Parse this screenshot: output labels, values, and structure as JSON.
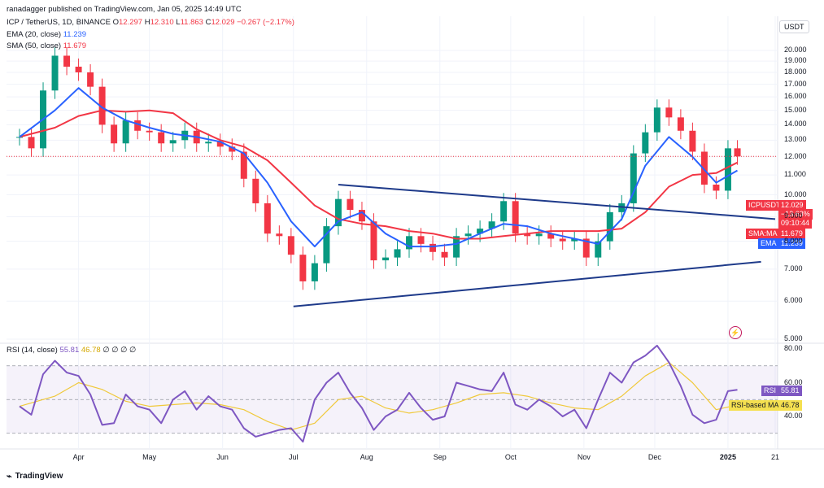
{
  "header": {
    "published": "ranadagger published on TradingView.com, Jan 05, 2025 14:49 UTC",
    "symbol": "ICP / TetherUS, 1D, BINANCE",
    "ohlc": {
      "o_label": "O",
      "o": "12.297",
      "h_label": "H",
      "h": "12.310",
      "l_label": "L",
      "l": "11.863",
      "c_label": "C",
      "c": "12.029",
      "change": "−0.267 (−2.17%)"
    },
    "ema_legend": {
      "label": "EMA (20, close)",
      "value": "11.239"
    },
    "sma_legend": {
      "label": "SMA (50, close)",
      "value": "11.679"
    },
    "rsi_legend": {
      "label": "RSI (14, close)",
      "value": "55.81",
      "ma_value": "46.78",
      "extra": "∅ ∅ ∅ ∅"
    }
  },
  "currency": "USDT",
  "price_badges": {
    "symbol": "ICPUSDT",
    "price": "12.029",
    "pct": "−13.63%",
    "countdown": "09:10:44",
    "sma_tag": "SMA:MA",
    "sma_value": "11.679",
    "ema_tag": "EMA",
    "ema_value": "11.239"
  },
  "rsi_badges": {
    "rsi_tag": "RSI",
    "rsi_value": "55.81",
    "ma_tag": "RSI-based MA",
    "ma_value": "46.78"
  },
  "colors": {
    "up": "#089981",
    "down": "#f23645",
    "ema": "#2962ff",
    "sma": "#f23645",
    "rsi": "#7e57c2",
    "rsi_ma": "#f0c93a",
    "trendline": "#1e3a8a"
  },
  "tradingview_logo": "TradingView",
  "chart_data": [
    {
      "type": "candlestick",
      "title": "ICP / TetherUS, 1D, BINANCE",
      "y_scale": "log",
      "y_ticks": [
        5.0,
        6.0,
        7.0,
        8.0,
        9.0,
        10.0,
        11.0,
        12.0,
        13.0,
        14.0,
        15.0,
        16.0,
        17.0,
        18.0,
        19.0,
        20.0
      ],
      "y_tick_labels": [
        "5.000",
        "6.000",
        "7.000",
        "8.000",
        "9.000",
        "10.000",
        "11.000",
        "12.000",
        "13.000",
        "14.000",
        "15.000",
        "16.000",
        "17.000",
        "18.000",
        "19.000",
        "20.000"
      ],
      "x_tick_labels": [
        "Apr",
        "May",
        "Jun",
        "Jul",
        "Aug",
        "Sep",
        "Oct",
        "Nov",
        "Dec",
        "2025",
        "21"
      ],
      "x_tick_dates": [
        "2024-04-01",
        "2024-05-01",
        "2024-06-01",
        "2024-07-01",
        "2024-08-01",
        "2024-09-01",
        "2024-10-01",
        "2024-11-01",
        "2024-12-01",
        "2025-01-01",
        "2025-01-21"
      ],
      "close_series": {
        "dates": [
          "2024-03-07",
          "2024-03-12",
          "2024-03-17",
          "2024-03-22",
          "2024-03-27",
          "2024-04-01",
          "2024-04-06",
          "2024-04-11",
          "2024-04-16",
          "2024-04-21",
          "2024-04-26",
          "2024-05-01",
          "2024-05-06",
          "2024-05-11",
          "2024-05-16",
          "2024-05-21",
          "2024-05-26",
          "2024-05-31",
          "2024-06-05",
          "2024-06-10",
          "2024-06-15",
          "2024-06-20",
          "2024-06-25",
          "2024-06-30",
          "2024-07-05",
          "2024-07-10",
          "2024-07-15",
          "2024-07-20",
          "2024-07-25",
          "2024-07-30",
          "2024-08-04",
          "2024-08-09",
          "2024-08-14",
          "2024-08-19",
          "2024-08-24",
          "2024-08-29",
          "2024-09-03",
          "2024-09-08",
          "2024-09-13",
          "2024-09-18",
          "2024-09-23",
          "2024-09-28",
          "2024-10-03",
          "2024-10-08",
          "2024-10-13",
          "2024-10-18",
          "2024-10-23",
          "2024-10-28",
          "2024-11-02",
          "2024-11-07",
          "2024-11-12",
          "2024-11-17",
          "2024-11-22",
          "2024-11-27",
          "2024-12-02",
          "2024-12-07",
          "2024-12-12",
          "2024-12-17",
          "2024-12-22",
          "2024-12-27",
          "2025-01-01",
          "2025-01-05"
        ],
        "close": [
          13.2,
          12.5,
          16.5,
          19.5,
          18.5,
          18.0,
          16.8,
          14.0,
          12.8,
          14.3,
          13.6,
          13.5,
          12.8,
          13.0,
          13.6,
          12.8,
          12.9,
          12.6,
          12.3,
          10.8,
          9.6,
          8.3,
          8.2,
          7.5,
          6.6,
          7.2,
          8.6,
          9.8,
          9.3,
          8.8,
          7.3,
          7.4,
          7.7,
          8.2,
          7.9,
          7.6,
          7.4,
          8.2,
          8.3,
          8.5,
          8.8,
          9.7,
          8.3,
          8.2,
          8.3,
          8.1,
          8.0,
          8.1,
          7.4,
          8.0,
          9.2,
          9.6,
          12.2,
          13.5,
          15.2,
          14.5,
          13.6,
          12.3,
          10.5,
          10.2,
          12.5,
          12.029
        ]
      },
      "ema20": {
        "dates": [
          "2024-03-07",
          "2024-03-22",
          "2024-04-01",
          "2024-04-11",
          "2024-04-21",
          "2024-05-01",
          "2024-05-11",
          "2024-05-21",
          "2024-05-31",
          "2024-06-10",
          "2024-06-20",
          "2024-06-30",
          "2024-07-10",
          "2024-07-20",
          "2024-07-30",
          "2024-08-09",
          "2024-08-19",
          "2024-08-29",
          "2024-09-08",
          "2024-09-18",
          "2024-09-28",
          "2024-10-08",
          "2024-10-18",
          "2024-10-28",
          "2024-11-07",
          "2024-11-17",
          "2024-11-27",
          "2024-12-07",
          "2024-12-17",
          "2024-12-27",
          "2025-01-05"
        ],
        "values": [
          13.2,
          15.0,
          16.7,
          15.2,
          14.3,
          13.8,
          13.4,
          13.2,
          12.9,
          12.2,
          10.6,
          8.8,
          7.8,
          8.8,
          9.2,
          8.3,
          7.8,
          7.8,
          7.9,
          8.3,
          8.7,
          8.6,
          8.3,
          8.1,
          7.9,
          8.9,
          11.5,
          13.2,
          12.0,
          10.6,
          11.239
        ]
      },
      "sma50": {
        "dates": [
          "2024-03-07",
          "2024-03-22",
          "2024-04-01",
          "2024-04-11",
          "2024-04-21",
          "2024-05-01",
          "2024-05-11",
          "2024-05-21",
          "2024-05-31",
          "2024-06-10",
          "2024-06-20",
          "2024-06-30",
          "2024-07-10",
          "2024-07-20",
          "2024-07-30",
          "2024-08-09",
          "2024-08-19",
          "2024-08-29",
          "2024-09-08",
          "2024-09-18",
          "2024-09-28",
          "2024-10-08",
          "2024-10-18",
          "2024-10-28",
          "2024-11-07",
          "2024-11-17",
          "2024-11-27",
          "2024-12-07",
          "2024-12-17",
          "2024-12-27",
          "2025-01-05"
        ],
        "values": [
          13.2,
          13.8,
          14.6,
          15.0,
          14.9,
          15.0,
          14.8,
          13.7,
          13.0,
          12.6,
          11.8,
          10.6,
          9.5,
          8.9,
          8.7,
          8.6,
          8.4,
          8.3,
          8.1,
          8.1,
          8.2,
          8.3,
          8.4,
          8.4,
          8.4,
          8.5,
          9.2,
          10.4,
          11.0,
          11.1,
          11.679
        ]
      },
      "trendlines": [
        {
          "name": "upper",
          "from": {
            "date": "2024-07-20",
            "value": 10.5
          },
          "to": {
            "date": "2025-01-21",
            "value": 8.9
          }
        },
        {
          "name": "lower",
          "from": {
            "date": "2024-07-01",
            "value": 5.85
          },
          "to": {
            "date": "2025-01-15",
            "value": 7.25
          }
        }
      ]
    },
    {
      "type": "line",
      "title": "RSI (14, close)",
      "y_ticks": [
        40,
        60,
        80
      ],
      "y_tick_labels": [
        "40.00",
        "60.00",
        "80.00"
      ],
      "band": [
        30,
        70
      ],
      "rsi": {
        "dates": [
          "2024-03-07",
          "2024-03-12",
          "2024-03-17",
          "2024-03-22",
          "2024-03-27",
          "2024-04-01",
          "2024-04-06",
          "2024-04-11",
          "2024-04-16",
          "2024-04-21",
          "2024-04-26",
          "2024-05-01",
          "2024-05-06",
          "2024-05-11",
          "2024-05-16",
          "2024-05-21",
          "2024-05-26",
          "2024-05-31",
          "2024-06-05",
          "2024-06-10",
          "2024-06-15",
          "2024-06-20",
          "2024-06-25",
          "2024-06-30",
          "2024-07-05",
          "2024-07-10",
          "2024-07-15",
          "2024-07-20",
          "2024-07-25",
          "2024-07-30",
          "2024-08-04",
          "2024-08-09",
          "2024-08-14",
          "2024-08-19",
          "2024-08-24",
          "2024-08-29",
          "2024-09-03",
          "2024-09-08",
          "2024-09-13",
          "2024-09-18",
          "2024-09-23",
          "2024-09-28",
          "2024-10-03",
          "2024-10-08",
          "2024-10-13",
          "2024-10-18",
          "2024-10-23",
          "2024-10-28",
          "2024-11-02",
          "2024-11-07",
          "2024-11-12",
          "2024-11-17",
          "2024-11-22",
          "2024-11-27",
          "2024-12-02",
          "2024-12-07",
          "2024-12-12",
          "2024-12-17",
          "2024-12-22",
          "2024-12-27",
          "2025-01-01",
          "2025-01-05"
        ],
        "values": [
          46,
          41,
          65,
          73,
          66,
          64,
          53,
          35,
          36,
          53,
          46,
          44,
          36,
          50,
          55,
          44,
          52,
          46,
          44,
          33,
          28,
          30,
          32,
          33,
          25,
          50,
          60,
          66,
          54,
          45,
          32,
          40,
          44,
          54,
          45,
          38,
          40,
          60,
          58,
          56,
          55,
          66,
          47,
          44,
          50,
          46,
          40,
          44,
          33,
          50,
          66,
          60,
          72,
          76,
          82,
          72,
          58,
          41,
          36,
          38,
          55,
          55.81
        ]
      },
      "rsi_ma": {
        "dates": [
          "2024-03-07",
          "2024-03-22",
          "2024-04-01",
          "2024-04-11",
          "2024-04-21",
          "2024-05-01",
          "2024-05-11",
          "2024-05-21",
          "2024-05-31",
          "2024-06-10",
          "2024-06-20",
          "2024-06-30",
          "2024-07-10",
          "2024-07-20",
          "2024-07-30",
          "2024-08-09",
          "2024-08-19",
          "2024-08-29",
          "2024-09-08",
          "2024-09-18",
          "2024-09-28",
          "2024-10-08",
          "2024-10-18",
          "2024-10-28",
          "2024-11-07",
          "2024-11-17",
          "2024-11-27",
          "2024-12-07",
          "2024-12-17",
          "2024-12-27",
          "2025-01-05"
        ],
        "values": [
          46,
          52,
          60,
          56,
          49,
          46,
          47,
          48,
          47,
          44,
          37,
          32,
          36,
          50,
          52,
          45,
          42,
          44,
          48,
          53,
          54,
          52,
          48,
          45,
          44,
          52,
          64,
          72,
          60,
          44,
          46.78
        ]
      }
    }
  ]
}
